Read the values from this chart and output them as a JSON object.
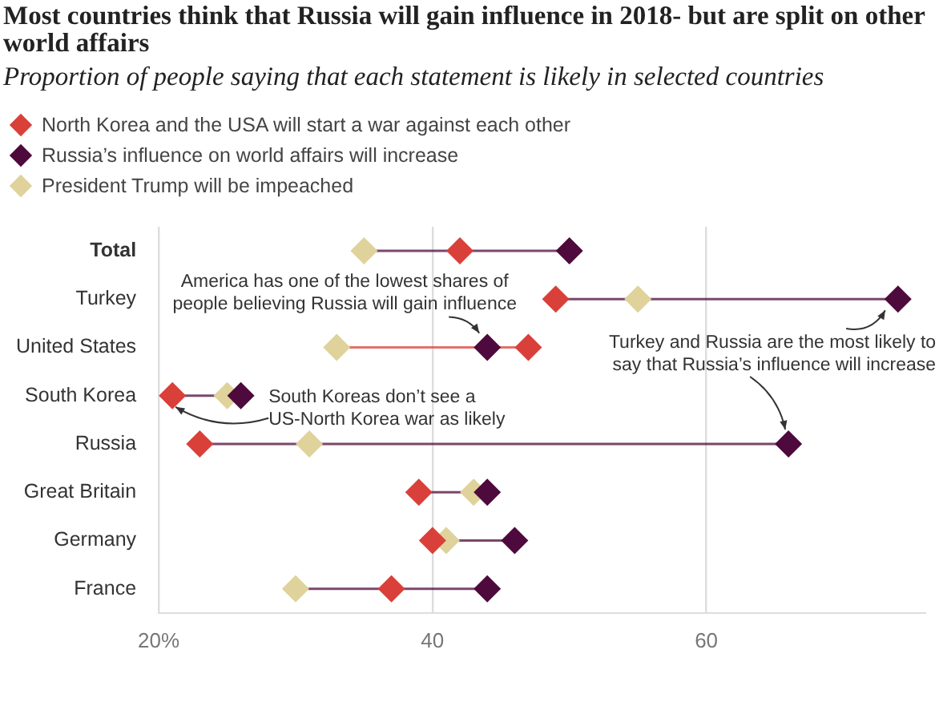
{
  "chart_data": {
    "type": "scatter",
    "orientation": "horizontal",
    "title": "Most countries think that Russia will gain influence in 2018- but are split on other world affairs",
    "subtitle": "Proportion of people saying that each statement is likely in selected countries",
    "categories": [
      "Total",
      "Turkey",
      "United States",
      "South Korea",
      "Russia",
      "Great Britain",
      "Germany",
      "France"
    ],
    "series": [
      {
        "name": "North Korea and the USA will start a war against each other",
        "color": "#d9403a",
        "values": [
          42,
          49,
          47,
          21,
          23,
          39,
          40,
          37
        ]
      },
      {
        "name": "Russia’s influence on world affairs will increase",
        "color": "#4e0a3c",
        "values": [
          50,
          74,
          44,
          26,
          66,
          44,
          46,
          44
        ]
      },
      {
        "name": "President Trump will be impeached",
        "color": "#dfd29b",
        "values": [
          35,
          55,
          33,
          25,
          31,
          43,
          41,
          30
        ]
      }
    ],
    "xlim": [
      20,
      76
    ],
    "xticks": [
      {
        "value": 20,
        "label": "20%"
      },
      40,
      60
    ],
    "grid": "x",
    "legend": "top left",
    "marker": "diamond",
    "annotations": [
      {
        "text": "America has one of the lowest shares of people believing Russia will gain influence",
        "x": 44,
        "y": "United States"
      },
      {
        "text": "South Koreas don’t see a US-North Korea war as likely",
        "x": 21,
        "y": "South Korea"
      },
      {
        "text": "Turkey and Russia are the most likely to say that Russia’s influence will increase",
        "x": 66,
        "y": "Russia"
      }
    ]
  }
}
